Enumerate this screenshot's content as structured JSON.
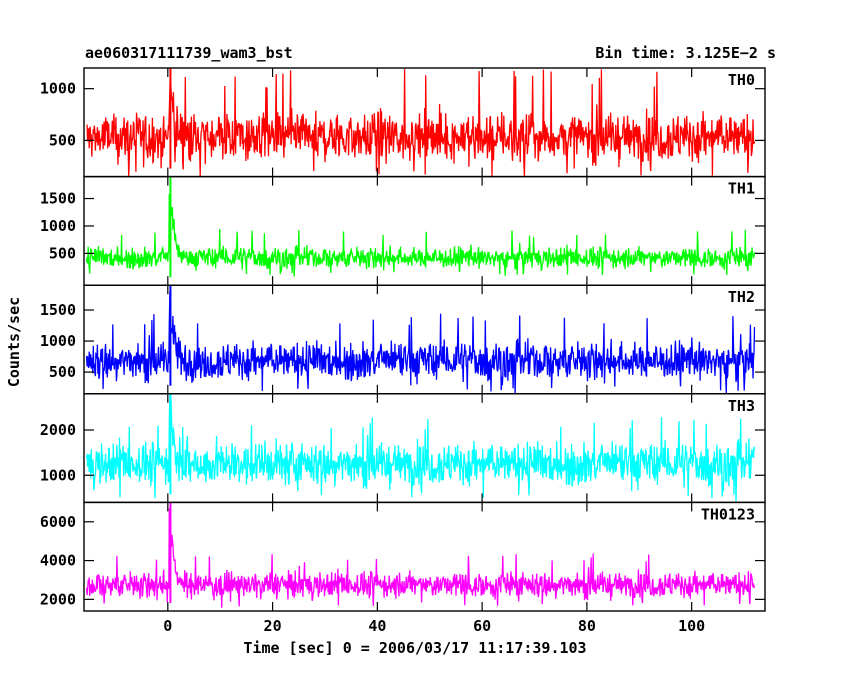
{
  "title_left": "ae060317111739_wam3_bst",
  "title_right": "Bin time: 3.125E−2 s",
  "chart_data": {
    "type": "line",
    "xlabel": "Time [sec] 0 = 2006/03/17 11:17:39.103",
    "ylabel": "Counts/sec",
    "xlim": [
      -16,
      114
    ],
    "xticks": [
      0,
      20,
      40,
      60,
      80,
      100
    ],
    "series_range": [
      -15.5,
      112
    ],
    "burst_time": 0.5,
    "panels": [
      {
        "name": "TH0",
        "color": "#ff0000",
        "ylim": [
          150,
          1200
        ],
        "yticks": [
          500,
          1000
        ],
        "baseline": 530,
        "noise": 115,
        "spike_max": 1200,
        "burst_peak": 1180
      },
      {
        "name": "TH1",
        "color": "#00ff00",
        "ylim": [
          -80,
          1900
        ],
        "yticks": [
          500,
          1000,
          1500
        ],
        "baseline": 420,
        "noise": 95,
        "spike_max": 950,
        "burst_peak": 1900
      },
      {
        "name": "TH2",
        "color": "#0000ff",
        "ylim": [
          150,
          1900
        ],
        "yticks": [
          500,
          1000,
          1500
        ],
        "baseline": 680,
        "noise": 150,
        "spike_max": 1450,
        "burst_peak": 1850
      },
      {
        "name": "TH3",
        "color": "#00ffff",
        "ylim": [
          400,
          2800
        ],
        "yticks": [
          1000,
          2000
        ],
        "baseline": 1250,
        "noise": 230,
        "spike_max": 2300,
        "burst_peak": 2800
      },
      {
        "name": "TH0123",
        "color": "#ff00ff",
        "ylim": [
          1400,
          7000
        ],
        "yticks": [
          2000,
          4000,
          6000
        ],
        "baseline": 2750,
        "noise": 330,
        "spike_max": 4400,
        "burst_peak": 7000
      }
    ]
  }
}
